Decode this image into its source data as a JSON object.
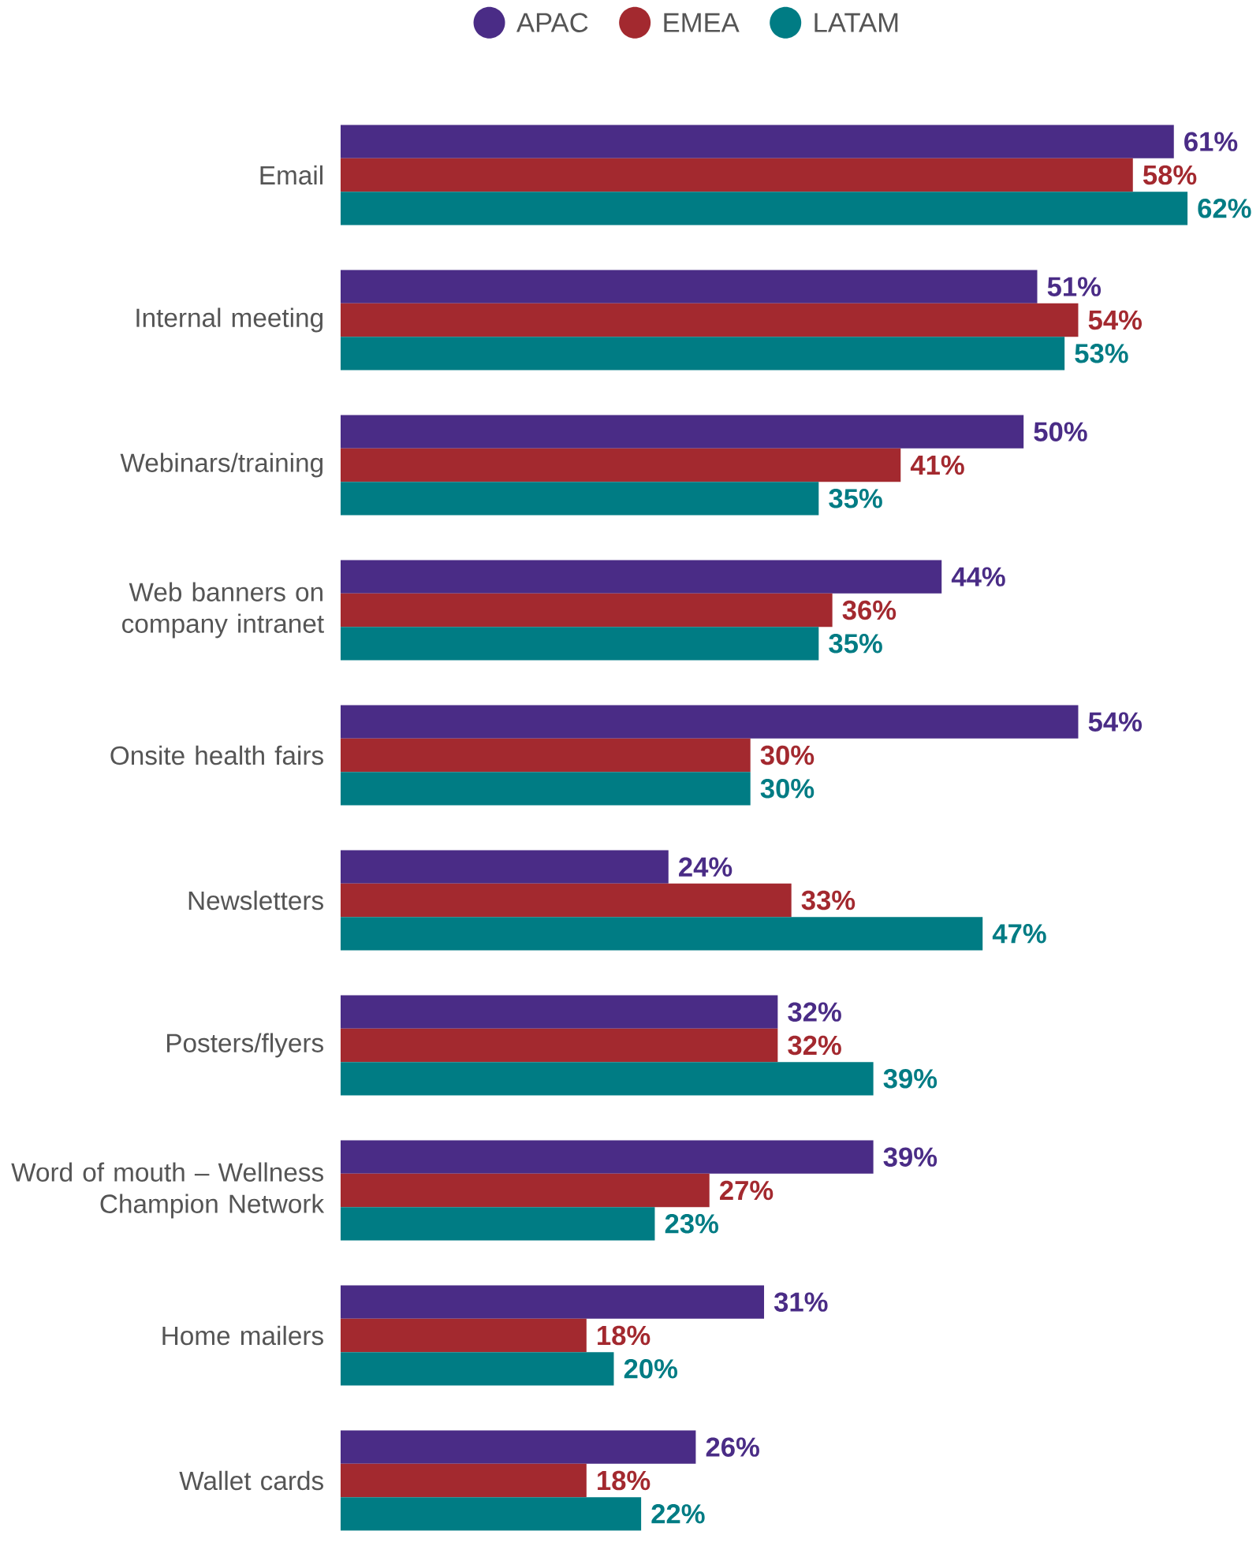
{
  "chart_data": {
    "type": "bar",
    "orientation": "horizontal",
    "legend": "top",
    "tick_labels": "y",
    "categories": [
      "Email",
      "Internal meeting",
      "Webinars/training",
      "Web banners on company intranet",
      "Onsite health fairs",
      "Newsletters",
      "Posters/flyers",
      "Word of mouth – Wellness Champion Network",
      "Home mailers",
      "Wallet cards"
    ],
    "series": [
      {
        "name": "APAC",
        "color": "#4a2c86",
        "values": [
          61,
          51,
          50,
          44,
          54,
          24,
          32,
          39,
          31,
          26
        ],
        "value_labels": [
          "61%",
          "51%",
          "50%",
          "44%",
          "54%",
          "24%",
          "32%",
          "39%",
          "31%",
          "26%"
        ]
      },
      {
        "name": "EMEA",
        "color": "#a3292f",
        "values": [
          58,
          54,
          41,
          36,
          30,
          33,
          32,
          27,
          18,
          18
        ],
        "value_labels": [
          "58%",
          "54%",
          "41%",
          "36%",
          "30%",
          "33%",
          "32%",
          "27%",
          "18%",
          "18%"
        ]
      },
      {
        "name": "LATAM",
        "color": "#007c84",
        "values": [
          62,
          53,
          35,
          35,
          30,
          47,
          39,
          23,
          20,
          22
        ],
        "value_labels": [
          "62%",
          "53%",
          "35%",
          "35%",
          "30%",
          "47%",
          "39%",
          "23%",
          "20%",
          "22%"
        ]
      }
    ]
  }
}
